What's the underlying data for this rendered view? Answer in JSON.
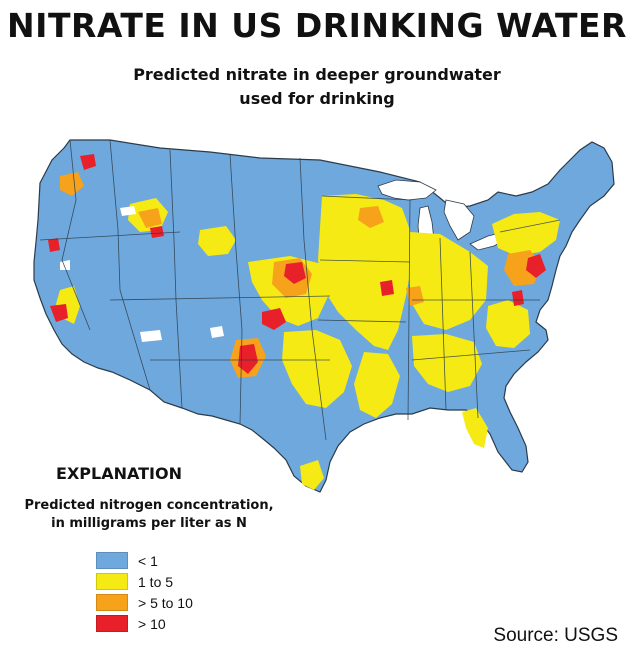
{
  "headline": "NITRATE IN US DRINKING WATER",
  "subtitle": {
    "line1": "Predicted nitrate in deeper groundwater",
    "line2": "used for drinking"
  },
  "legend": {
    "title": "EXPLANATION",
    "subtitle_line1": "Predicted nitrogen concentration,",
    "subtitle_line2": "in milligrams per liter as N",
    "items": [
      {
        "label": "< 1",
        "color": "#6fa8dc"
      },
      {
        "label": "1 to 5",
        "color": "#f5ea14"
      },
      {
        "label": "> 5 to 10",
        "color": "#f7a21b"
      },
      {
        "label": "> 10",
        "color": "#e8202a"
      }
    ]
  },
  "source": "Source: USGS",
  "colors": {
    "low": "#6fa8dc",
    "mid": "#f5ea14",
    "high": "#f7a21b",
    "very_high": "#e8202a",
    "state_border": "#2b3b4a"
  }
}
